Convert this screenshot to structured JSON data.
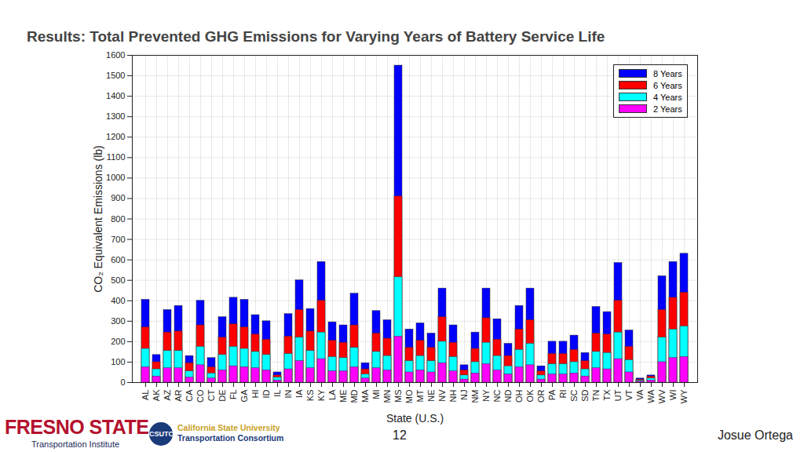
{
  "chart_data": {
    "type": "bar",
    "title": "Results: Total Prevented GHG Emissions for Varying Years of Battery Service Life",
    "x_label": "State (U.S.)",
    "y_label": "CO₂ Equivalent Emissions (lb)",
    "categories": [
      "AL",
      "AK",
      "AZ",
      "AR",
      "CA",
      "CO",
      "CT",
      "DE",
      "FL",
      "GA",
      "HI",
      "ID",
      "IL",
      "IN",
      "IA",
      "KS",
      "KY",
      "LA",
      "ME",
      "MD",
      "MA",
      "MI",
      "MN",
      "MS",
      "MO",
      "MT",
      "NE",
      "NV",
      "NH",
      "NJ",
      "NM",
      "NY",
      "NC",
      "ND",
      "OH",
      "OK",
      "OR",
      "PA",
      "RI",
      "SC",
      "SD",
      "TN",
      "TX",
      "UT",
      "VT",
      "VA",
      "WA",
      "WV",
      "WI",
      "WY"
    ],
    "series": [
      {
        "name": "8 Years",
        "color": "#0000ff",
        "values": [
          405,
          135,
          355,
          375,
          130,
          400,
          120,
          320,
          415,
          405,
          330,
          300,
          50,
          335,
          500,
          360,
          590,
          295,
          280,
          435,
          95,
          350,
          305,
          1550,
          260,
          290,
          240,
          460,
          280,
          85,
          245,
          460,
          310,
          190,
          375,
          460,
          80,
          200,
          200,
          230,
          145,
          370,
          345,
          585,
          255,
          20,
          35,
          520,
          590,
          630
        ]
      },
      {
        "name": "6 Years",
        "color": "#ff0000",
        "values": [
          270,
          100,
          245,
          250,
          95,
          280,
          75,
          220,
          285,
          270,
          235,
          210,
          35,
          225,
          355,
          250,
          400,
          205,
          195,
          280,
          65,
          240,
          215,
          910,
          170,
          205,
          170,
          320,
          195,
          60,
          165,
          315,
          210,
          130,
          260,
          305,
          55,
          140,
          140,
          160,
          105,
          240,
          235,
          400,
          175,
          15,
          30,
          355,
          415,
          440
        ]
      },
      {
        "name": "4 Years",
        "color": "#00ffff",
        "values": [
          165,
          65,
          155,
          155,
          55,
          175,
          45,
          135,
          175,
          165,
          150,
          135,
          25,
          140,
          220,
          155,
          245,
          125,
          120,
          170,
          40,
          150,
          130,
          515,
          105,
          130,
          105,
          200,
          125,
          35,
          100,
          195,
          130,
          80,
          160,
          190,
          35,
          90,
          90,
          100,
          65,
          150,
          145,
          245,
          110,
          10,
          20,
          220,
          260,
          275
        ]
      },
      {
        "name": "2 Years",
        "color": "#ff00ff",
        "values": [
          75,
          30,
          70,
          70,
          25,
          85,
          20,
          60,
          80,
          75,
          70,
          60,
          10,
          65,
          105,
          70,
          115,
          55,
          55,
          75,
          20,
          70,
          60,
          225,
          50,
          60,
          50,
          95,
          55,
          15,
          45,
          90,
          60,
          40,
          75,
          85,
          15,
          40,
          40,
          45,
          30,
          70,
          65,
          115,
          50,
          5,
          10,
          100,
          120,
          125
        ]
      }
    ],
    "ylim": [
      0,
      1600
    ],
    "yticks": [
      0,
      100,
      200,
      300,
      400,
      500,
      600,
      700,
      800,
      900,
      1000,
      1100,
      1200,
      1300,
      1400,
      1500,
      1600
    ],
    "grid": true,
    "legend": "upper right",
    "stacked": false
  },
  "slide": {
    "page": "12",
    "author": "Josue Ortega",
    "logo_left": [
      "FRESNO STATE",
      "Transportation Institute"
    ],
    "logo_right": [
      "CSUTC",
      "California State University",
      "Transportation Consortium"
    ]
  }
}
